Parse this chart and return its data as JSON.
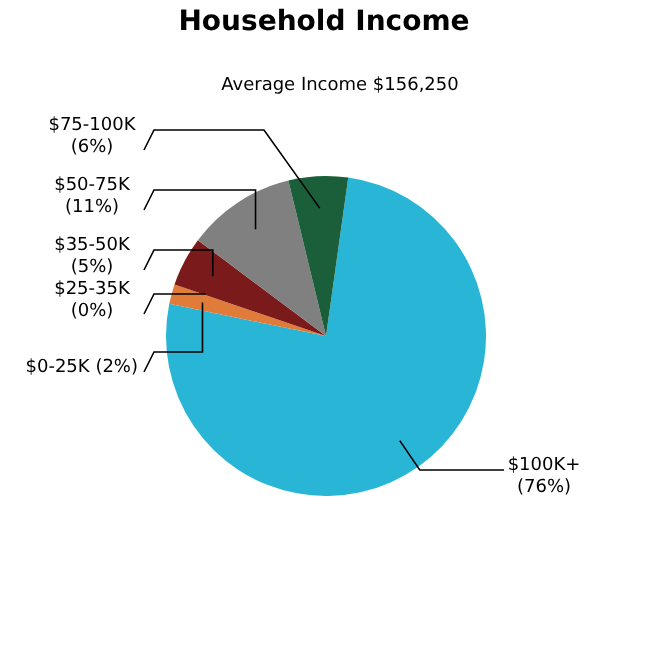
{
  "chart_data": {
    "type": "pie",
    "title": "Household Income",
    "annotations": [
      "Average Income  $156,250"
    ],
    "categories": [
      "$100K+",
      "$0-25K",
      "$25-35K",
      "$35-50K",
      "$50-75K",
      "$75-100K"
    ],
    "values": [
      76,
      2,
      0,
      5,
      11,
      6
    ],
    "value_labels": [
      "(76%)",
      "(2%)",
      "(0%)",
      "(5%)",
      "(11%)",
      "(6%)"
    ],
    "colors": [
      "#29b6d6",
      "#e07b39",
      "#c8a060",
      "#7a1a1a",
      "#808080",
      "#1a5e3a"
    ]
  }
}
